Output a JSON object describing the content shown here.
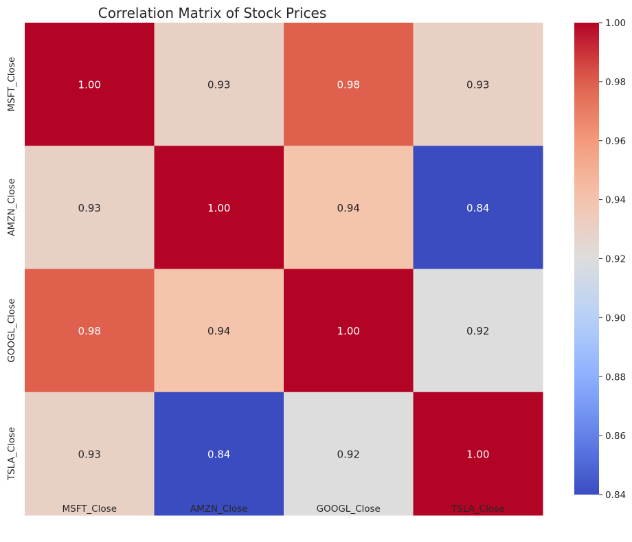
{
  "chart_data": {
    "type": "heatmap",
    "title": "Correlation Matrix of Stock Prices",
    "x_labels": [
      "MSFT_Close",
      "AMZN_Close",
      "GOOGL_Close",
      "TSLA_Close"
    ],
    "y_labels": [
      "MSFT_Close",
      "AMZN_Close",
      "GOOGL_Close",
      "TSLA_Close"
    ],
    "values": [
      [
        1.0,
        0.93,
        0.98,
        0.93
      ],
      [
        0.93,
        1.0,
        0.94,
        0.84
      ],
      [
        0.98,
        0.94,
        1.0,
        0.92
      ],
      [
        0.93,
        0.84,
        0.92,
        1.0
      ]
    ],
    "value_format": "0.00",
    "colormap": "coolwarm",
    "vmin": 0.84,
    "vmax": 1.0,
    "colorbar_ticks": [
      "1.00",
      "0.98",
      "0.96",
      "0.94",
      "0.92",
      "0.90",
      "0.88",
      "0.86",
      "0.84"
    ]
  }
}
